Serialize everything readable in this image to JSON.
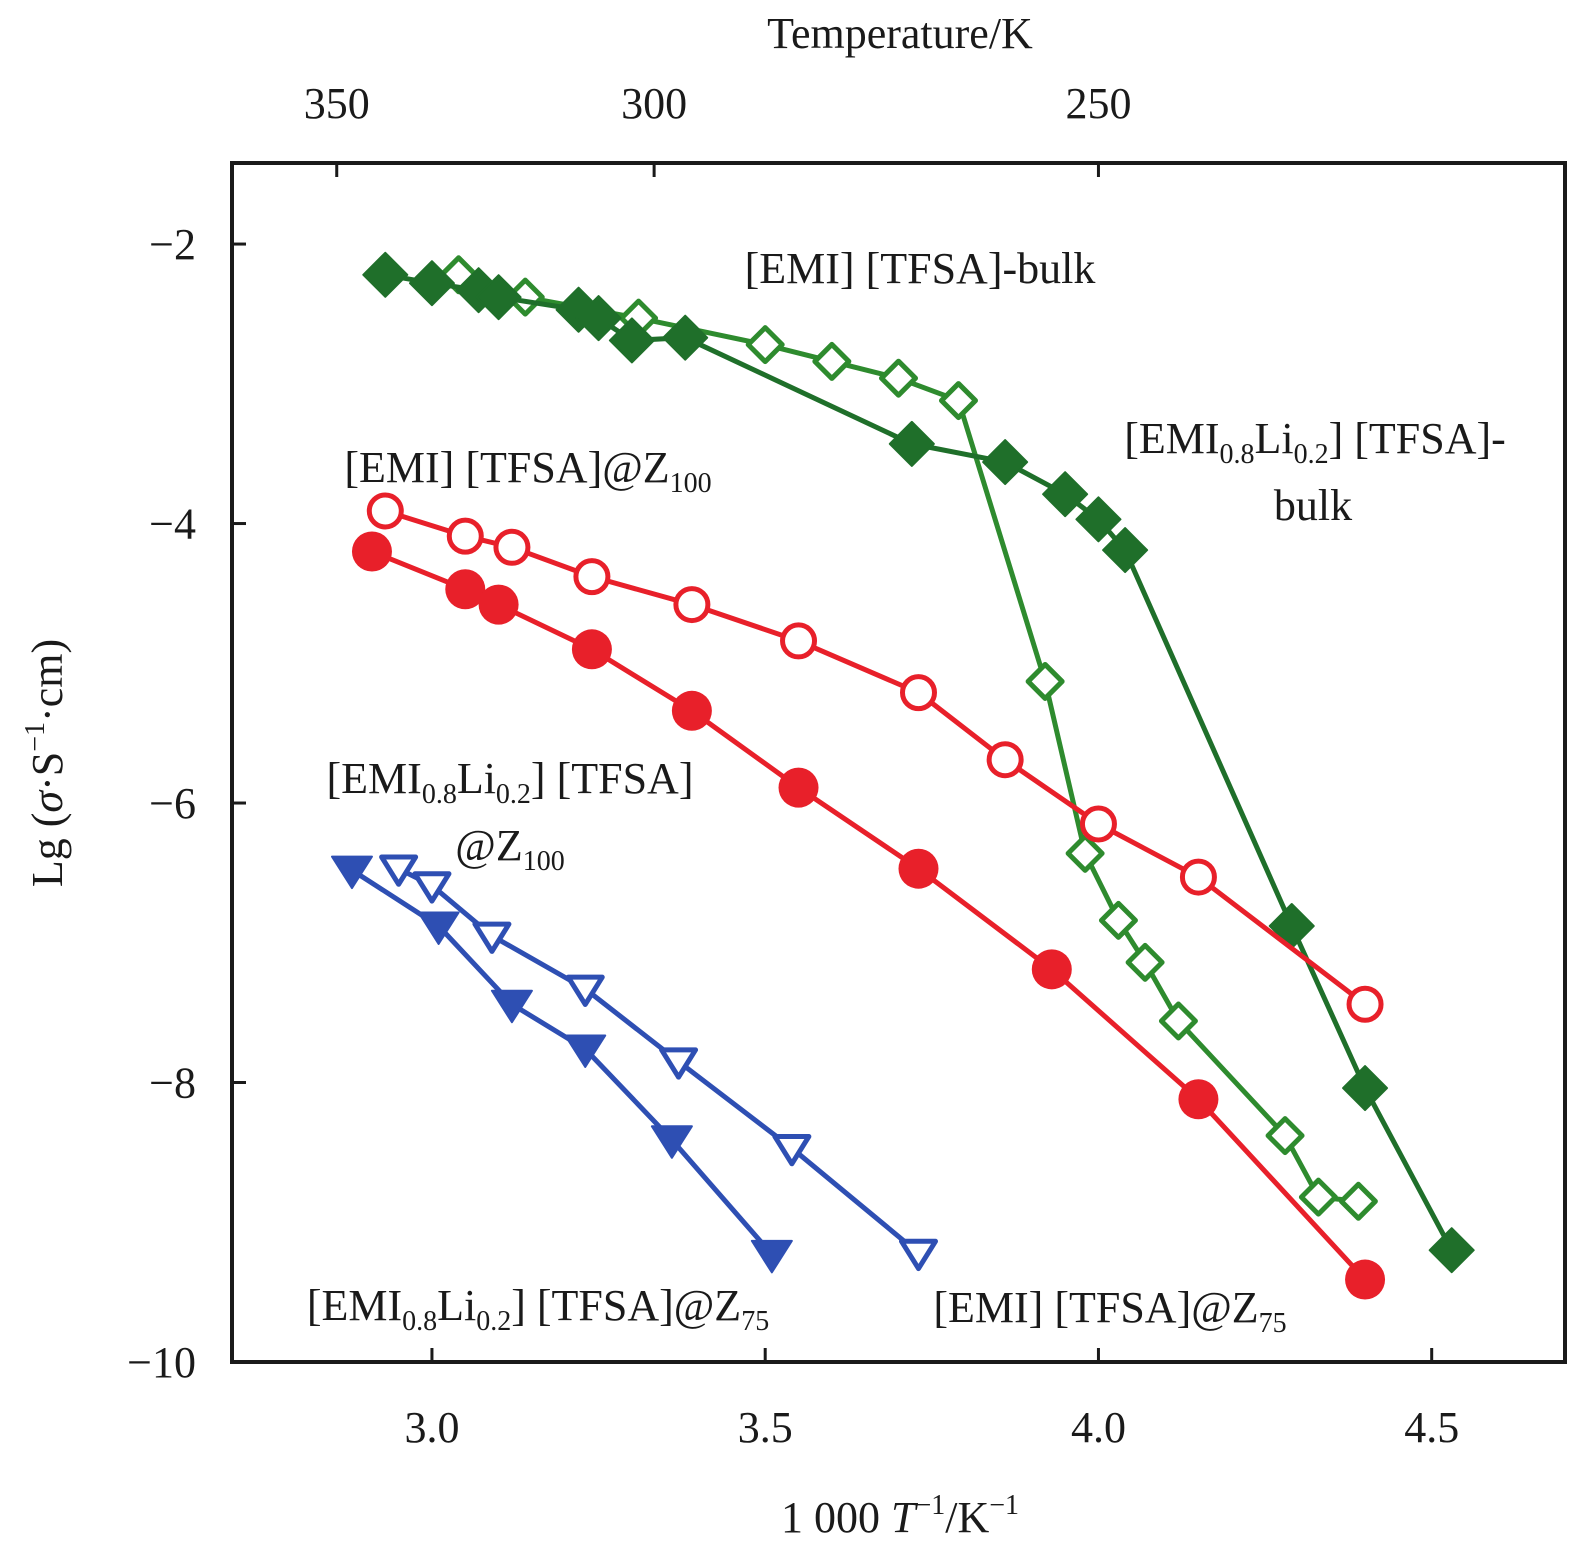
{
  "chart_data": {
    "type": "line",
    "title": "",
    "xlabel": "1 000 T⁻¹/K⁻¹",
    "xlabel_parts": {
      "prefix": "1 000 ",
      "var": "T",
      "sup1": "−1",
      "mid": "/K",
      "sup2": "−1"
    },
    "ylabel": "Lg (σ·S⁻¹·cm)",
    "ylabel_parts": {
      "prefix": "Lg (",
      "var": "σ",
      "mid": "·S",
      "sup": "−1",
      "suffix": "·cm)"
    },
    "top_xlabel": "Temperature/K",
    "xlim": [
      2.7,
      4.7
    ],
    "ylim": [
      -10,
      -1.42
    ],
    "x_ticks": [
      3.0,
      3.5,
      4.0,
      4.5
    ],
    "x_tick_labels": [
      "3.0",
      "3.5",
      "4.0",
      "4.5"
    ],
    "y_ticks": [
      -2,
      -4,
      -6,
      -8,
      -10
    ],
    "y_tick_labels": [
      "−2",
      "−4",
      "−6",
      "−8",
      "−10"
    ],
    "top_ticks_kelvin": [
      350,
      300,
      250
    ],
    "top_tick_labels": [
      "350",
      "300",
      "250"
    ],
    "grid": false,
    "legend": "none (inline annotations)",
    "series": [
      {
        "name": "[EMI] [TFSA]-bulk",
        "color": "#2e8b2e",
        "marker": "diamond",
        "filled": false,
        "x": [
          3.04,
          3.14,
          3.31,
          3.5,
          3.6,
          3.7,
          3.79,
          3.92,
          3.98,
          4.03,
          4.07,
          4.12,
          4.28,
          4.33,
          4.39
        ],
        "y": [
          -2.22,
          -2.38,
          -2.53,
          -2.72,
          -2.84,
          -2.96,
          -3.12,
          -5.13,
          -6.36,
          -6.84,
          -7.14,
          -7.56,
          -8.38,
          -8.82,
          -8.85
        ]
      },
      {
        "name": "[EMI0.8Li0.2] [TFSA]-bulk",
        "color": "#1f6f2a",
        "marker": "diamond",
        "filled": true,
        "x": [
          2.93,
          3.0,
          3.07,
          3.1,
          3.22,
          3.25,
          3.3,
          3.38,
          3.72,
          3.86,
          3.95,
          4.0,
          4.04,
          4.29,
          4.4,
          4.53
        ],
        "y": [
          -2.22,
          -2.28,
          -2.33,
          -2.38,
          -2.47,
          -2.53,
          -2.69,
          -2.67,
          -3.43,
          -3.56,
          -3.79,
          -3.97,
          -4.19,
          -6.88,
          -8.04,
          -9.2
        ]
      },
      {
        "name": "[EMI] [TFSA]@Z100",
        "color": "#e8202a",
        "marker": "circle",
        "filled": false,
        "x": [
          2.93,
          3.05,
          3.12,
          3.24,
          3.39,
          3.55,
          3.73,
          3.86,
          4.0,
          4.15,
          4.4
        ],
        "y": [
          -3.91,
          -4.09,
          -4.17,
          -4.38,
          -4.58,
          -4.84,
          -5.21,
          -5.69,
          -6.15,
          -6.53,
          -7.44
        ]
      },
      {
        "name": "[EMI] [TFSA]@Z75",
        "color": "#e8202a",
        "marker": "circle",
        "filled": true,
        "x": [
          2.91,
          3.05,
          3.1,
          3.24,
          3.39,
          3.55,
          3.73,
          3.93,
          4.15,
          4.4
        ],
        "y": [
          -4.2,
          -4.47,
          -4.58,
          -4.9,
          -5.34,
          -5.89,
          -6.47,
          -7.19,
          -8.12,
          -9.41
        ]
      },
      {
        "name": "[EMI0.8Li0.2] [TFSA]@Z100",
        "color": "#2e4fb3",
        "marker": "triangle-down",
        "filled": false,
        "x": [
          2.95,
          3.0,
          3.09,
          3.23,
          3.37,
          3.54,
          3.73
        ],
        "y": [
          -6.47,
          -6.59,
          -6.95,
          -7.33,
          -7.85,
          -8.47,
          -9.22
        ]
      },
      {
        "name": "[EMI0.8Li0.2] [TFSA]@Z75",
        "color": "#2e4fb3",
        "marker": "triangle-down",
        "filled": true,
        "x": [
          2.88,
          3.01,
          3.12,
          3.23,
          3.36,
          3.51
        ],
        "y": [
          -6.48,
          -6.88,
          -7.44,
          -7.76,
          -8.41,
          -9.23
        ]
      }
    ],
    "annotations": [
      {
        "id": "emi-bulk",
        "parts": [
          {
            "t": "[EMI] [TFSA]-bulk"
          }
        ]
      },
      {
        "id": "emili-bulk-1",
        "parts": [
          {
            "t": "[EMI"
          },
          {
            "t": "0.8",
            "sub": true
          },
          {
            "t": "Li"
          },
          {
            "t": "0.2",
            "sub": true
          },
          {
            "t": "] [TFSA]-"
          }
        ]
      },
      {
        "id": "emili-bulk-2",
        "parts": [
          {
            "t": "bulk"
          }
        ]
      },
      {
        "id": "emi-z100",
        "parts": [
          {
            "t": "[EMI] [TFSA]@Z"
          },
          {
            "t": "100",
            "sub": true
          }
        ]
      },
      {
        "id": "emili-z100-1",
        "parts": [
          {
            "t": "[EMI"
          },
          {
            "t": "0.8",
            "sub": true
          },
          {
            "t": "Li"
          },
          {
            "t": "0.2",
            "sub": true
          },
          {
            "t": "] [TFSA]"
          }
        ]
      },
      {
        "id": "emili-z100-2",
        "parts": [
          {
            "t": "@Z"
          },
          {
            "t": "100",
            "sub": true
          }
        ]
      },
      {
        "id": "emili-z75",
        "parts": [
          {
            "t": "[EMI"
          },
          {
            "t": "0.8",
            "sub": true
          },
          {
            "t": "Li"
          },
          {
            "t": "0.2",
            "sub": true
          },
          {
            "t": "] [TFSA]@Z"
          },
          {
            "t": "75",
            "sub": true
          }
        ]
      },
      {
        "id": "emi-z75",
        "parts": [
          {
            "t": "[EMI] [TFSA]@Z"
          },
          {
            "t": "75",
            "sub": true
          }
        ]
      }
    ]
  }
}
